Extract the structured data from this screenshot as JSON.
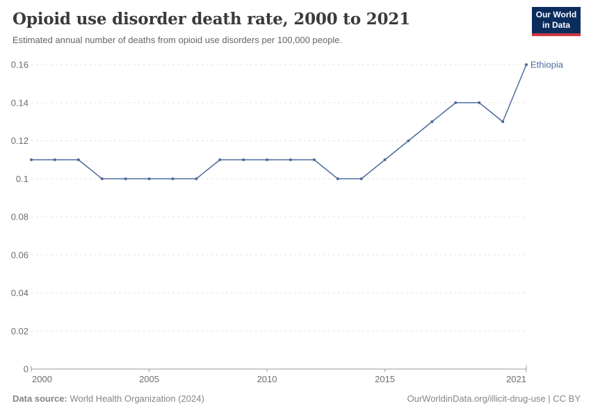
{
  "header": {
    "title": "Opioid use disorder death rate, 2000 to 2021",
    "subtitle": "Estimated annual number of deaths from opioid use disorders per 100,000 people.",
    "logo": {
      "line1": "Our World",
      "line2": "in Data"
    }
  },
  "chart_data": {
    "type": "line",
    "title": "Opioid use disorder death rate, 2000 to 2021",
    "subtitle": "Estimated annual number of deaths from opioid use disorders per 100,000 people.",
    "x": [
      2000,
      2001,
      2002,
      2003,
      2004,
      2005,
      2006,
      2007,
      2008,
      2009,
      2010,
      2011,
      2012,
      2013,
      2014,
      2015,
      2016,
      2017,
      2018,
      2019,
      2020,
      2021
    ],
    "series": [
      {
        "name": "Ethiopia",
        "color": "#4C6A9C",
        "values": [
          0.11,
          0.11,
          0.11,
          0.1,
          0.1,
          0.1,
          0.1,
          0.1,
          0.11,
          0.11,
          0.11,
          0.11,
          0.11,
          0.1,
          0.1,
          0.11,
          0.12,
          0.13,
          0.14,
          0.14,
          0.13,
          0.16
        ]
      }
    ],
    "xlabel": "",
    "ylabel": "",
    "ylim": [
      0,
      0.16
    ],
    "yticks": [
      {
        "value": 0,
        "label": "0"
      },
      {
        "value": 0.02,
        "label": "0.02"
      },
      {
        "value": 0.04,
        "label": "0.04"
      },
      {
        "value": 0.06,
        "label": "0.06"
      },
      {
        "value": 0.08,
        "label": "0.08"
      },
      {
        "value": 0.1,
        "label": "0.1"
      },
      {
        "value": 0.12,
        "label": "0.12"
      },
      {
        "value": 0.14,
        "label": "0.14"
      },
      {
        "value": 0.16,
        "label": "0.16"
      }
    ],
    "xticks": [
      2000,
      2005,
      2010,
      2015,
      2021
    ],
    "grid": "horizontal dashed",
    "legend_position": "line-end label"
  },
  "footer": {
    "source_label": "Data source:",
    "source_value": " World Health Organization (2024)",
    "credit": "OurWorldinData.org/illicit-drug-use | CC BY"
  },
  "colors": {
    "line": "#4C6A9C",
    "series_label": "#4C6A9C",
    "grid": "#dcdcdc",
    "axis": "#9a9a9a",
    "tick_label": "#6d6d6d",
    "title": "#3a3a3a",
    "subtitle": "#656565",
    "footer": "#858585",
    "logo_bg": "#0a2d5e",
    "logo_red": "#d13640"
  }
}
